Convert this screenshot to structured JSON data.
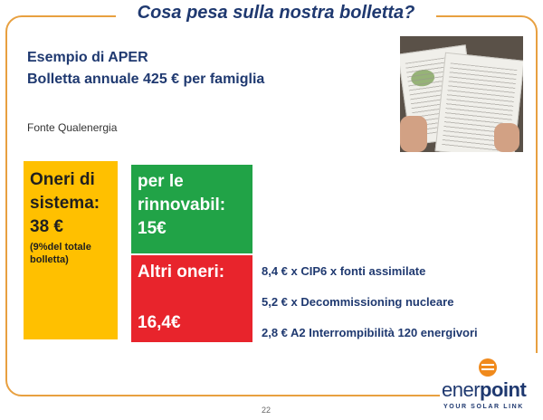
{
  "slide": {
    "title": "Cosa pesa sulla nostra bolletta?",
    "subtitle_line1": "Esempio di APER",
    "subtitle_line2": "Bolletta annuale 425 € per famiglia",
    "source": "Fonte Qualenergia",
    "page_number": "22"
  },
  "boxes": {
    "oneri": {
      "line1": "Oneri di",
      "line2": "sistema:",
      "value": "38 €",
      "note1": "(9%del totale",
      "note2": "bolletta)",
      "color": "#ffc000"
    },
    "rinnovabili": {
      "line1": "per le",
      "line2": "rinnovabil:",
      "value": "15€",
      "color": "#21a347"
    },
    "altri": {
      "label": "Altri oneri:",
      "value": "16,4€",
      "color": "#e8242c"
    }
  },
  "details": [
    "8,4 € x CIP6 x fonti assimilate",
    "5,2 € x Decommissioning nucleare",
    "2,8 € A2  Interrompibilità 120 energivori"
  ],
  "brand": {
    "word_light": "ener",
    "word_bold": "point",
    "tagline": "YOUR SOLAR LINK",
    "accent": "#f08a1c"
  },
  "colors": {
    "title": "#1f3970",
    "frame": "#e8a040"
  },
  "photo": {
    "icon": "bill-photo"
  }
}
